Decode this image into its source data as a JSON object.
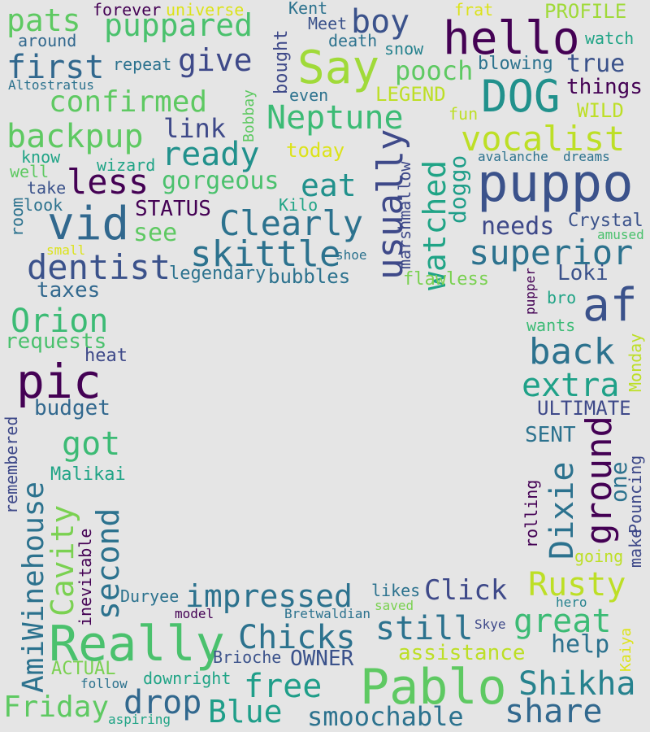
{
  "words": [
    {
      "text": "puppo",
      "color": "#3b528b"
    },
    {
      "text": "hello",
      "color": "#440154"
    },
    {
      "text": "DOG",
      "color": "#21918c"
    },
    {
      "text": "Say",
      "color": "#a0da39"
    },
    {
      "text": "Pablo",
      "color": "#5ec962"
    },
    {
      "text": "Really",
      "color": "#4ac16d"
    },
    {
      "text": "pic",
      "color": "#440154"
    },
    {
      "text": "vid",
      "color": "#31688e"
    },
    {
      "text": "af",
      "color": "#3b528b"
    },
    {
      "text": "impressed",
      "color": "#2c728e"
    },
    {
      "text": "puppared",
      "color": "#4ac16d"
    },
    {
      "text": "boy",
      "color": "#3b528b"
    },
    {
      "text": "pats",
      "color": "#5ec962"
    },
    {
      "text": "first",
      "color": "#31688e"
    },
    {
      "text": "give",
      "color": "#3e4989"
    },
    {
      "text": "confirmed",
      "color": "#5ec962"
    },
    {
      "text": "pooch",
      "color": "#5ec962"
    },
    {
      "text": "true",
      "color": "#3b528b"
    },
    {
      "text": "things",
      "color": "#440154"
    },
    {
      "text": "Neptune",
      "color": "#3cbb75"
    },
    {
      "text": "backpup",
      "color": "#5ec962"
    },
    {
      "text": "link",
      "color": "#3e4989"
    },
    {
      "text": "ready",
      "color": "#21918c"
    },
    {
      "text": "vocalist",
      "color": "#bddf26"
    },
    {
      "text": "less",
      "color": "#440154"
    },
    {
      "text": "gorgeous",
      "color": "#4ac16d"
    },
    {
      "text": "eat",
      "color": "#21918c"
    },
    {
      "text": "usually",
      "color": "#3e4989"
    },
    {
      "text": "watched",
      "color": "#20a486"
    },
    {
      "text": "doggo",
      "color": "#1f9e89"
    },
    {
      "text": "Clearly",
      "color": "#2c728e"
    },
    {
      "text": "STATUS",
      "color": "#440154"
    },
    {
      "text": "see",
      "color": "#5ec962"
    },
    {
      "text": "skittle",
      "color": "#2c728e"
    },
    {
      "text": "needs",
      "color": "#3e4989"
    },
    {
      "text": "dentist",
      "color": "#3b528b"
    },
    {
      "text": "superior",
      "color": "#2c728e"
    },
    {
      "text": "Loki",
      "color": "#3b528b"
    },
    {
      "text": "taxes",
      "color": "#31688e"
    },
    {
      "text": "legendary",
      "color": "#2c728e"
    },
    {
      "text": "bubbles",
      "color": "#2c728e"
    },
    {
      "text": "flawless",
      "color": "#7ad151"
    },
    {
      "text": "Orion",
      "color": "#3cbb75"
    },
    {
      "text": "requests",
      "color": "#4ac16d"
    },
    {
      "text": "heat",
      "color": "#3e4989"
    },
    {
      "text": "back",
      "color": "#2c728e"
    },
    {
      "text": "extra",
      "color": "#1fa188"
    },
    {
      "text": "budget",
      "color": "#31688e"
    },
    {
      "text": "ULTIMATE",
      "color": "#3e4989"
    },
    {
      "text": "SENT",
      "color": "#2c728e"
    },
    {
      "text": "got",
      "color": "#3cbb75"
    },
    {
      "text": "AmiWinehouse",
      "color": "#2c728e"
    },
    {
      "text": "Cavity",
      "color": "#7ad151"
    },
    {
      "text": "second",
      "color": "#2c728e"
    },
    {
      "text": "Malikai",
      "color": "#20a486"
    },
    {
      "text": "ground",
      "color": "#440154"
    },
    {
      "text": "Dixie",
      "color": "#2c728e"
    },
    {
      "text": "one",
      "color": "#2c728e"
    },
    {
      "text": "Rusty",
      "color": "#bddf26"
    },
    {
      "text": "Click",
      "color": "#3e4989"
    },
    {
      "text": "still",
      "color": "#2c728e"
    },
    {
      "text": "great",
      "color": "#3cbb75"
    },
    {
      "text": "help",
      "color": "#2c728e"
    },
    {
      "text": "Chicks",
      "color": "#2c728e"
    },
    {
      "text": "OWNER",
      "color": "#3b528b"
    },
    {
      "text": "assistance",
      "color": "#bddf26"
    },
    {
      "text": "free",
      "color": "#1f9e89"
    },
    {
      "text": "Shikha",
      "color": "#26828e"
    },
    {
      "text": "share",
      "color": "#31688e"
    },
    {
      "text": "drop",
      "color": "#31688e"
    },
    {
      "text": "Blue",
      "color": "#1f9e89"
    },
    {
      "text": "smoochable",
      "color": "#2c728e"
    },
    {
      "text": "Friday",
      "color": "#5ec962"
    },
    {
      "text": "forever",
      "color": "#440154"
    },
    {
      "text": "universe",
      "color": "#dce319"
    },
    {
      "text": "Kent",
      "color": "#2c728e"
    },
    {
      "text": "frat",
      "color": "#dce319"
    },
    {
      "text": "PROFILE",
      "color": "#a0da39"
    },
    {
      "text": "Meet",
      "color": "#3b528b"
    },
    {
      "text": "death",
      "color": "#2c728e"
    },
    {
      "text": "snow",
      "color": "#26828e"
    },
    {
      "text": "watch",
      "color": "#20a486"
    },
    {
      "text": "around",
      "color": "#31688e"
    },
    {
      "text": "repeat",
      "color": "#2c728e"
    },
    {
      "text": "Altostratus",
      "color": "#2c728e"
    },
    {
      "text": "bought",
      "color": "#3e4989"
    },
    {
      "text": "even",
      "color": "#2c728e"
    },
    {
      "text": "blowing",
      "color": "#2c728e"
    },
    {
      "text": "LEGEND",
      "color": "#bddf26"
    },
    {
      "text": "WILD",
      "color": "#bddf26"
    },
    {
      "text": "fun",
      "color": "#bddf26"
    },
    {
      "text": "Bobbay",
      "color": "#5ec962"
    },
    {
      "text": "today",
      "color": "#dce319"
    },
    {
      "text": "marshmallow",
      "color": "#3e4989"
    },
    {
      "text": "avalanche",
      "color": "#2c728e"
    },
    {
      "text": "dreams",
      "color": "#2c728e"
    },
    {
      "text": "know",
      "color": "#20a486"
    },
    {
      "text": "wizard",
      "color": "#20a486"
    },
    {
      "text": "well",
      "color": "#5ec962"
    },
    {
      "text": "take",
      "color": "#3b528b"
    },
    {
      "text": "look",
      "color": "#2c728e"
    },
    {
      "text": "room",
      "color": "#2c728e"
    },
    {
      "text": "Kilo",
      "color": "#20a486"
    },
    {
      "text": "Crystal",
      "color": "#3b528b"
    },
    {
      "text": "amused",
      "color": "#4ac16d"
    },
    {
      "text": "small",
      "color": "#dce319"
    },
    {
      "text": "shoe",
      "color": "#2c728e"
    },
    {
      "text": "pupper",
      "color": "#440154"
    },
    {
      "text": "bro",
      "color": "#20a486"
    },
    {
      "text": "wants",
      "color": "#3cbb75"
    },
    {
      "text": "Monday",
      "color": "#bddf26"
    },
    {
      "text": "remembered",
      "color": "#3e4989"
    },
    {
      "text": "rolling",
      "color": "#440154"
    },
    {
      "text": "Pouncing",
      "color": "#3e4989"
    },
    {
      "text": "make",
      "color": "#3e4989"
    },
    {
      "text": "going",
      "color": "#bddf26"
    },
    {
      "text": "inevitable",
      "color": "#440154"
    },
    {
      "text": "Duryee",
      "color": "#2c728e"
    },
    {
      "text": "likes",
      "color": "#2c728e"
    },
    {
      "text": "saved",
      "color": "#7ad151"
    },
    {
      "text": "model",
      "color": "#440154"
    },
    {
      "text": "Bretwaldian",
      "color": "#2c728e"
    },
    {
      "text": "hero",
      "color": "#26828e"
    },
    {
      "text": "Skye",
      "color": "#3e4989"
    },
    {
      "text": "Kaiya",
      "color": "#dce319"
    },
    {
      "text": "ACTUAL",
      "color": "#7ad151"
    },
    {
      "text": "Brioche",
      "color": "#3b528b"
    },
    {
      "text": "downright",
      "color": "#20a486"
    },
    {
      "text": "follow",
      "color": "#2c728e"
    },
    {
      "text": "aspiring",
      "color": "#20a486"
    }
  ]
}
